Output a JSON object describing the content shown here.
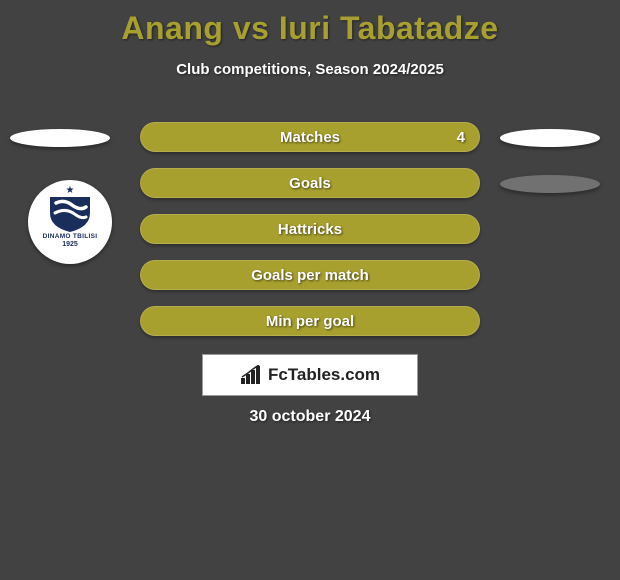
{
  "title": "Anang vs Iuri Tabatadze",
  "subtitle": "Club competitions, Season 2024/2025",
  "colors": {
    "background": "#434243",
    "accent": "#a8a02e",
    "pill_white": "#ffffff",
    "pill_gray": "#717171",
    "text_white": "#ffffff",
    "club_blue": "#1a2e5c"
  },
  "club": {
    "name": "DINAMO TBILISI",
    "year": "1925"
  },
  "rows": [
    {
      "label": "Matches",
      "value": "4",
      "left_pill": true,
      "right_pill": "white"
    },
    {
      "label": "Goals",
      "value": "",
      "left_pill": false,
      "right_pill": "gray"
    },
    {
      "label": "Hattricks",
      "value": "",
      "left_pill": false,
      "right_pill": "none"
    },
    {
      "label": "Goals per match",
      "value": "",
      "left_pill": false,
      "right_pill": "none"
    },
    {
      "label": "Min per goal",
      "value": "",
      "left_pill": false,
      "right_pill": "none"
    }
  ],
  "logo_text": "FcTables.com",
  "date": "30 october 2024"
}
